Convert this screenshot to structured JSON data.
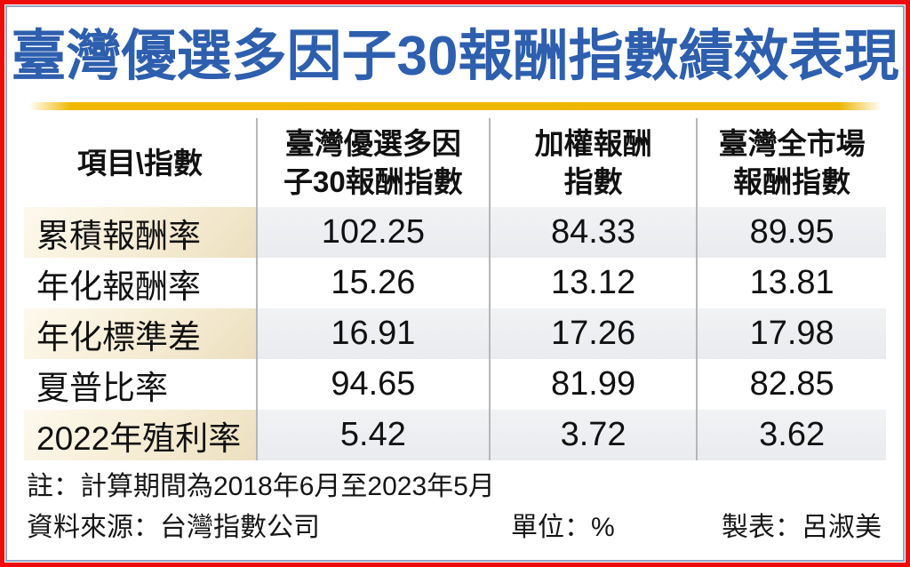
{
  "title": "臺灣優選多因子30報酬指數績效表現",
  "colors": {
    "outer_border": "#ee0b0b",
    "inner_border": "#90a7c8",
    "title_blue": "#2e5fae",
    "gold_rule": "#f0b800",
    "label_shade": "#f3e8ce",
    "value_shade": "#edeff2",
    "divider_gray": "#b6b6b8"
  },
  "table": {
    "header": [
      {
        "lines": [
          "項目\\指數",
          ""
        ]
      },
      {
        "lines": [
          "臺灣優選多因",
          "子30報酬指數"
        ]
      },
      {
        "lines": [
          "加權報酬",
          "指數"
        ]
      },
      {
        "lines": [
          "臺灣全市場",
          "報酬指數"
        ]
      }
    ],
    "rows": [
      {
        "label": "累積報酬率",
        "values": [
          "102.25",
          "84.33",
          "89.95"
        ]
      },
      {
        "label": "年化報酬率",
        "values": [
          "15.26",
          "13.12",
          "13.81"
        ]
      },
      {
        "label": "年化標準差",
        "values": [
          "16.91",
          "17.26",
          "17.98"
        ]
      },
      {
        "label": "夏普比率",
        "values": [
          "94.65",
          "81.99",
          "82.85"
        ]
      },
      {
        "label": "2022年殖利率",
        "values": [
          "5.42",
          "3.72",
          "3.62"
        ]
      }
    ]
  },
  "footer": {
    "note": "註：計算期間為2018年6月至2023年5月",
    "source": "資料來源：台灣指數公司",
    "unit": "單位：%",
    "credit": "製表：呂淑美"
  },
  "chart_data": {
    "type": "table",
    "title": "臺灣優選多因子30報酬指數績效表現",
    "columns": [
      "項目\\指數",
      "臺灣優選多因子30報酬指數",
      "加權報酬指數",
      "臺灣全市場報酬指數"
    ],
    "rows": [
      [
        "累積報酬率",
        102.25,
        84.33,
        89.95
      ],
      [
        "年化報酬率",
        15.26,
        13.12,
        13.81
      ],
      [
        "年化標準差",
        16.91,
        17.26,
        17.98
      ],
      [
        "夏普比率",
        94.65,
        81.99,
        82.85
      ],
      [
        "2022年殖利率",
        5.42,
        3.72,
        3.62
      ]
    ],
    "unit": "%",
    "notes": [
      "註：計算期間為2018年6月至2023年5月",
      "資料來源：台灣指數公司",
      "製表：呂淑美"
    ]
  }
}
